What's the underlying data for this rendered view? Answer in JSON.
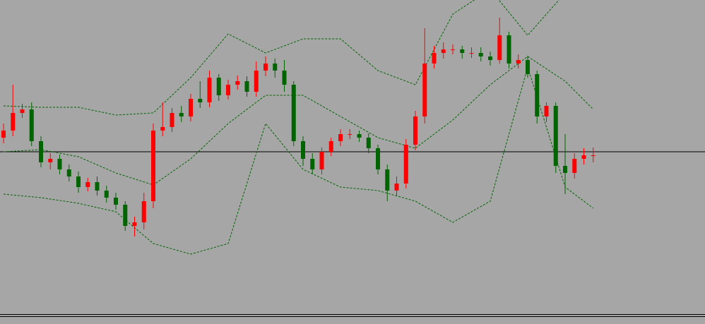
{
  "chart_data": {
    "type": "candlestick",
    "open": [
      250,
      260,
      285,
      290,
      245,
      215,
      220,
      205,
      195,
      180,
      187,
      175,
      165,
      155,
      125,
      130,
      160,
      260,
      265,
      285,
      280,
      305,
      300,
      335,
      310,
      325,
      330,
      315,
      345,
      355,
      345,
      325,
      245,
      220,
      205,
      230,
      245,
      255,
      255,
      250,
      235,
      205,
      175,
      185,
      240,
      280,
      355,
      370,
      375,
      375,
      370,
      370,
      365,
      360,
      395,
      355,
      360,
      340,
      280,
      295,
      210,
      200,
      220,
      225
    ],
    "high": [
      270,
      325,
      298,
      300,
      252,
      228,
      226,
      212,
      202,
      193,
      195,
      182,
      172,
      160,
      138,
      172,
      270,
      300,
      292,
      295,
      312,
      330,
      345,
      340,
      332,
      338,
      337,
      358,
      365,
      362,
      360,
      330,
      252,
      228,
      236,
      250,
      262,
      262,
      260,
      256,
      240,
      212,
      195,
      248,
      288,
      405,
      380,
      385,
      382,
      380,
      378,
      378,
      372,
      420,
      400,
      368,
      366,
      345,
      300,
      300,
      255,
      228,
      235,
      236
    ],
    "low": [
      242,
      252,
      278,
      238,
      208,
      205,
      198,
      188,
      172,
      174,
      168,
      158,
      148,
      118,
      110,
      120,
      150,
      252,
      258,
      272,
      273,
      292,
      293,
      302,
      304,
      318,
      308,
      308,
      337,
      335,
      315,
      238,
      210,
      198,
      198,
      224,
      238,
      248,
      244,
      228,
      198,
      160,
      168,
      178,
      232,
      270,
      348,
      362,
      368,
      362,
      363,
      358,
      352,
      355,
      348,
      348,
      335,
      270,
      272,
      200,
      170,
      192,
      212,
      215
    ],
    "close": [
      260,
      285,
      290,
      245,
      215,
      220,
      205,
      195,
      180,
      187,
      175,
      165,
      155,
      125,
      130,
      160,
      260,
      265,
      285,
      280,
      305,
      300,
      335,
      310,
      325,
      330,
      315,
      345,
      355,
      345,
      325,
      245,
      220,
      205,
      230,
      245,
      255,
      255,
      250,
      235,
      205,
      175,
      185,
      240,
      280,
      355,
      370,
      375,
      375,
      370,
      370,
      365,
      360,
      395,
      355,
      360,
      340,
      280,
      295,
      210,
      200,
      220,
      225,
      225
    ],
    "up_color": "#ff0000",
    "down_color": "#006400",
    "ylim": [
      0,
      445
    ],
    "hline": 230,
    "bands": {
      "color": "#006400",
      "x": [
        0,
        4,
        8,
        12,
        16,
        20,
        24,
        28,
        32,
        36,
        40,
        44,
        48,
        52,
        56,
        60,
        63
      ],
      "upper": [
        295,
        293,
        293,
        282,
        285,
        335,
        397,
        370,
        390,
        390,
        345,
        325,
        425,
        460,
        395,
        455,
        485
      ],
      "middle": [
        230,
        233,
        223,
        200,
        183,
        220,
        270,
        310,
        310,
        280,
        250,
        235,
        275,
        325,
        365,
        330,
        290
      ],
      "lower": [
        170,
        165,
        157,
        145,
        100,
        85,
        100,
        270,
        205,
        180,
        175,
        160,
        130,
        160,
        350,
        180,
        150
      ]
    }
  }
}
